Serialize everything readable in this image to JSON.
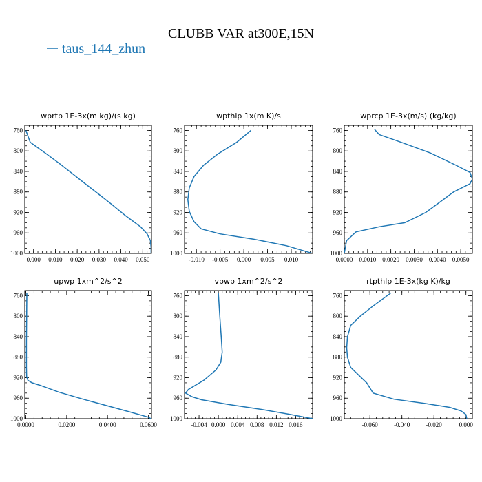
{
  "figure": {
    "title": "CLUBB VAR at300E,15N",
    "legend": {
      "label": "taus_144_zhun",
      "color": "#1f77b4"
    }
  },
  "chart_data": [
    {
      "type": "line",
      "title": "wprtp  1E-3x(m kg)/(s kg)",
      "xlim": [
        -0.004,
        0.054
      ],
      "ylim": [
        1000,
        750
      ],
      "xticks": [
        0.0,
        0.01,
        0.02,
        0.03,
        0.04,
        0.05
      ],
      "xtick_labels": [
        "0.000",
        "0.010",
        "0.020",
        "0.030",
        "0.040",
        "0.050"
      ],
      "yticks": [
        760,
        800,
        840,
        880,
        920,
        960,
        1000
      ],
      "ytick_labels": [
        "760",
        "800",
        "840",
        "880",
        "920",
        "960",
        "1000"
      ],
      "series": [
        {
          "color": "#1f77b4",
          "x": [
            -0.0035,
            -0.0015,
            0.006,
            0.012,
            0.018,
            0.024,
            0.03,
            0.036,
            0.042,
            0.049,
            0.052,
            0.0535,
            0.0538,
            0.0538
          ],
          "y": [
            760,
            783,
            806,
            825,
            845,
            865,
            885,
            905,
            926,
            948,
            962,
            975,
            988,
            1000
          ]
        }
      ]
    },
    {
      "type": "line",
      "title": "wpthlp  1x(m K)/s",
      "xlim": [
        -0.0125,
        0.0145
      ],
      "ylim": [
        1000,
        750
      ],
      "xticks": [
        -0.01,
        -0.005,
        0.0,
        0.005,
        0.01
      ],
      "xtick_labels": [
        "-0.010",
        "-0.005",
        "0.000",
        "0.005",
        "0.010"
      ],
      "yticks": [
        760,
        800,
        840,
        880,
        920,
        960,
        1000
      ],
      "ytick_labels": [
        "760",
        "800",
        "840",
        "880",
        "920",
        "960",
        "1000"
      ],
      "series": [
        {
          "color": "#1f77b4",
          "x": [
            0.0015,
            -0.0015,
            -0.0055,
            -0.0085,
            -0.0105,
            -0.0115,
            -0.0118,
            -0.0115,
            -0.0105,
            -0.009,
            -0.005,
            0.002,
            0.009,
            0.0145
          ],
          "y": [
            760,
            783,
            806,
            828,
            850,
            872,
            895,
            918,
            938,
            952,
            962,
            972,
            985,
            1000
          ]
        }
      ]
    },
    {
      "type": "line",
      "title": "wprcp  1E-3x(m/s) (kg/kg)",
      "xlim": [
        0.0,
        0.0055
      ],
      "ylim": [
        1000,
        750
      ],
      "xticks": [
        0.0,
        0.001,
        0.002,
        0.003,
        0.004,
        0.005
      ],
      "xtick_labels": [
        "0.0000",
        "0.0010",
        "0.0020",
        "0.0030",
        "0.0040",
        "0.0050"
      ],
      "yticks": [
        760,
        800,
        840,
        880,
        920,
        960,
        1000
      ],
      "ytick_labels": [
        "760",
        "800",
        "840",
        "880",
        "920",
        "960",
        "1000"
      ],
      "series": [
        {
          "color": "#1f77b4",
          "x": [
            0.0013,
            0.0015,
            0.0025,
            0.0037,
            0.0048,
            0.0054,
            0.0055,
            0.0054,
            0.0047,
            0.0035,
            0.0026,
            0.0015,
            0.0005,
            0.0001,
            0.0
          ],
          "y": [
            758,
            768,
            784,
            804,
            828,
            842,
            855,
            864,
            880,
            920,
            940,
            948,
            958,
            975,
            1000
          ]
        }
      ]
    },
    {
      "type": "line",
      "title": "upwp  1xm^2/s^2",
      "xlim": [
        -0.0005,
        0.0615
      ],
      "ylim": [
        1000,
        750
      ],
      "xticks": [
        0.0,
        0.02,
        0.04,
        0.06
      ],
      "xtick_labels": [
        "0.0000",
        "0.0200",
        "0.0400",
        "0.0600"
      ],
      "yticks": [
        760,
        800,
        840,
        880,
        920,
        960,
        1000
      ],
      "ytick_labels": [
        "760",
        "800",
        "840",
        "880",
        "920",
        "960",
        "1000"
      ],
      "series": [
        {
          "color": "#1f77b4",
          "x": [
            0.0005,
            0.0004,
            0.0003,
            0.0003,
            0.0004,
            0.001,
            0.003,
            0.007,
            0.016,
            0.028,
            0.04,
            0.052,
            0.06,
            0.0612
          ],
          "y": [
            755,
            800,
            850,
            900,
            918,
            925,
            930,
            935,
            948,
            962,
            975,
            988,
            997,
            1000
          ]
        }
      ]
    },
    {
      "type": "line",
      "title": "vpwp  1xm^2/s^2",
      "xlim": [
        -0.007,
        0.0195
      ],
      "ylim": [
        1000,
        750
      ],
      "xticks": [
        -0.004,
        0.0,
        0.004,
        0.008,
        0.012,
        0.016
      ],
      "xtick_labels": [
        "-0.004",
        "0.000",
        "0.004",
        "0.008",
        "0.012",
        "0.016"
      ],
      "yticks": [
        760,
        800,
        840,
        880,
        920,
        960,
        1000
      ],
      "ytick_labels": [
        "760",
        "800",
        "840",
        "880",
        "920",
        "960",
        "1000"
      ],
      "series": [
        {
          "color": "#1f77b4",
          "x": [
            0.0,
            0.0003,
            0.0006,
            0.0008,
            0.0005,
            -0.0005,
            -0.003,
            -0.0062,
            -0.0068,
            -0.0055,
            -0.0035,
            0.002,
            0.009,
            0.015,
            0.0195
          ],
          "y": [
            755,
            800,
            840,
            870,
            890,
            905,
            925,
            943,
            950,
            957,
            963,
            972,
            982,
            992,
            1000
          ]
        }
      ]
    },
    {
      "type": "line",
      "title": "rtpthlp  1E-3x(kg K)/kg",
      "xlim": [
        -0.076,
        0.004
      ],
      "ylim": [
        1000,
        750
      ],
      "xticks": [
        -0.06,
        -0.04,
        -0.02,
        0.0
      ],
      "xtick_labels": [
        "-0.060",
        "-0.040",
        "-0.020",
        "0.000"
      ],
      "yticks": [
        760,
        800,
        840,
        880,
        920,
        960,
        1000
      ],
      "ytick_labels": [
        "760",
        "800",
        "840",
        "880",
        "920",
        "960",
        "1000"
      ],
      "series": [
        {
          "color": "#1f77b4",
          "x": [
            -0.047,
            -0.058,
            -0.066,
            -0.072,
            -0.074,
            -0.0745,
            -0.074,
            -0.072,
            -0.067,
            -0.062,
            -0.058,
            -0.045,
            -0.026,
            -0.01,
            -0.003,
            0.0,
            0.0005
          ],
          "y": [
            755,
            780,
            800,
            818,
            840,
            862,
            880,
            900,
            915,
            930,
            950,
            962,
            970,
            978,
            985,
            992,
            1000
          ]
        }
      ]
    }
  ]
}
